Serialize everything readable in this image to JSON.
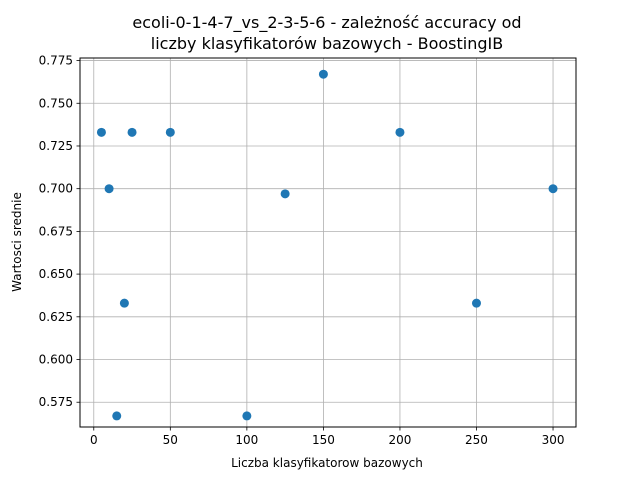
{
  "chart_data": {
    "type": "scatter",
    "title_line1": "ecoli-0-1-4-7_vs_2-3-5-6 - zależność accuracy od",
    "title_line2": "liczby klasyfikatorów bazowych - BoostingIB",
    "xlabel": "Liczba klasyfikatorow bazowych",
    "ylabel": "Wartosci srednie",
    "xlim": [
      -9,
      315
    ],
    "ylim": [
      0.5605,
      0.7765
    ],
    "x_ticks": [
      0,
      50,
      100,
      150,
      200,
      250,
      300
    ],
    "y_ticks": [
      0.575,
      0.6,
      0.625,
      0.65,
      0.675,
      0.7,
      0.725,
      0.75,
      0.775
    ],
    "x_tick_labels": [
      "0",
      "50",
      "100",
      "150",
      "200",
      "250",
      "300"
    ],
    "y_tick_labels": [
      "0.575",
      "0.600",
      "0.625",
      "0.650",
      "0.675",
      "0.700",
      "0.725",
      "0.750",
      "0.775"
    ],
    "grid": true,
    "marker_color": "#1f77b4",
    "x": [
      5,
      10,
      15,
      20,
      25,
      50,
      100,
      125,
      150,
      200,
      250,
      300
    ],
    "y": [
      0.733,
      0.7,
      0.567,
      0.633,
      0.733,
      0.733,
      0.567,
      0.697,
      0.767,
      0.733,
      0.633,
      0.7
    ]
  }
}
